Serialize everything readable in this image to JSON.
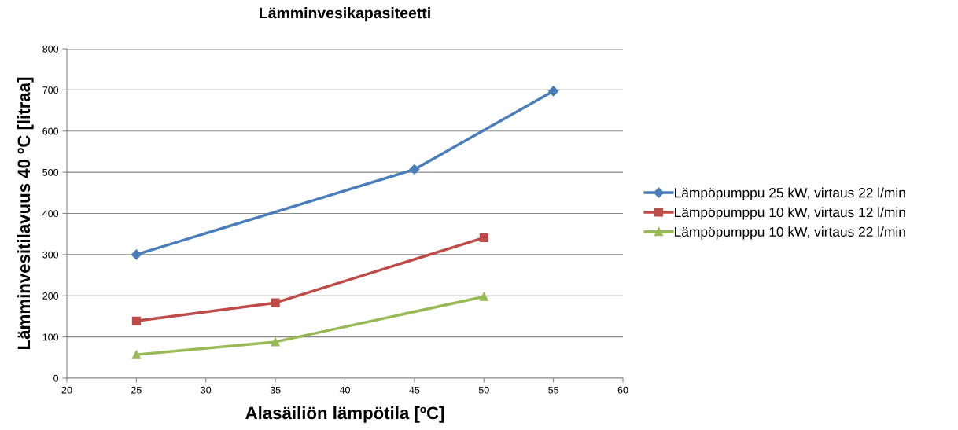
{
  "chart_data": {
    "type": "line",
    "title": "Lämminvesikapasiteetti",
    "xlabel": "Alasäiliön lämpötila [ºC]",
    "ylabel": "Lämminvesitilavuus 40 ºC [litraa]",
    "xlim": [
      20,
      60
    ],
    "xticks": [
      20,
      25,
      30,
      35,
      40,
      45,
      50,
      55,
      60
    ],
    "ylim": [
      0,
      800
    ],
    "yticks": [
      0,
      100,
      200,
      300,
      400,
      500,
      600,
      700,
      800
    ],
    "grid": "y",
    "legend": "right",
    "series": [
      {
        "name": "Lämpöpumppu 25 kW, virtaus 22 l/min",
        "color": "#4a7ebb",
        "marker": "diamond",
        "x": [
          25,
          45,
          55
        ],
        "values": [
          300,
          507,
          697
        ]
      },
      {
        "name": "Lämpöpumppu 10 kW, virtaus 12 l/min",
        "color": "#be4b48",
        "marker": "square",
        "x": [
          25,
          35,
          50
        ],
        "values": [
          139,
          183,
          341
        ]
      },
      {
        "name": "Lämpöpumppu 10 kW, virtaus 22 l/min",
        "color": "#98b954",
        "marker": "triangle",
        "x": [
          25,
          35,
          50
        ],
        "values": [
          57,
          88,
          198
        ]
      }
    ]
  }
}
